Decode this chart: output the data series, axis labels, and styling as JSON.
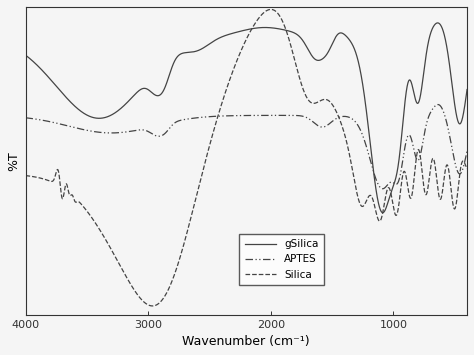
{
  "xlabel": "Wavenumber (cm⁻¹)",
  "ylabel": "%T",
  "x_ticks": [
    4000,
    3000,
    2000,
    1000
  ],
  "legend_labels": [
    "gSilica",
    "APTES",
    "Silica"
  ],
  "line_color": "#444444",
  "background": "#f5f5f5"
}
